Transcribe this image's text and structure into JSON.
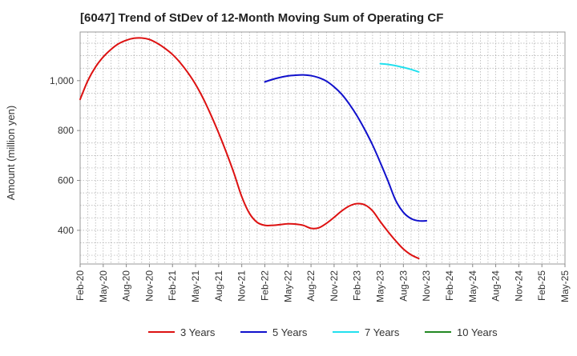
{
  "chart_data": {
    "type": "line",
    "title": "[6047]  Trend of StDev of 12-Month Moving Sum of Operating CF",
    "xlabel": "",
    "ylabel": "Amount (million yen)",
    "x_tick_labels": [
      "Feb-20",
      "May-20",
      "Aug-20",
      "Nov-20",
      "Feb-21",
      "May-21",
      "Aug-21",
      "Nov-21",
      "Feb-22",
      "May-22",
      "Aug-22",
      "Nov-22",
      "Feb-23",
      "May-23",
      "Aug-23",
      "Nov-23",
      "Feb-24",
      "May-24",
      "Aug-24",
      "Nov-24",
      "Feb-25",
      "May-25"
    ],
    "y_ticks": [
      400,
      600,
      800,
      1000
    ],
    "y_tick_labels": [
      "400",
      "600",
      "800",
      "1,000"
    ],
    "ylim": [
      265,
      1195
    ],
    "grid": true,
    "legend_position": "bottom",
    "series": [
      {
        "name": "3 Years",
        "color": "#dd1111",
        "points": [
          [
            "Feb-20",
            925
          ],
          [
            "Mar-20",
            1000
          ],
          [
            "Apr-20",
            1055
          ],
          [
            "May-20",
            1095
          ],
          [
            "Jun-20",
            1125
          ],
          [
            "Jul-20",
            1148
          ],
          [
            "Aug-20",
            1162
          ],
          [
            "Sep-20",
            1170
          ],
          [
            "Oct-20",
            1171
          ],
          [
            "Nov-20",
            1165
          ],
          [
            "Dec-20",
            1150
          ],
          [
            "Jan-21",
            1130
          ],
          [
            "Feb-21",
            1105
          ],
          [
            "Mar-21",
            1072
          ],
          [
            "Apr-21",
            1032
          ],
          [
            "May-21",
            985
          ],
          [
            "Jun-21",
            928
          ],
          [
            "Jul-21",
            862
          ],
          [
            "Aug-21",
            790
          ],
          [
            "Sep-21",
            712
          ],
          [
            "Oct-21",
            628
          ],
          [
            "Nov-21",
            535
          ],
          [
            "Dec-21",
            468
          ],
          [
            "Jan-22",
            432
          ],
          [
            "Feb-22",
            420
          ],
          [
            "Mar-22",
            420
          ],
          [
            "Apr-22",
            423
          ],
          [
            "May-22",
            426
          ],
          [
            "Jun-22",
            425
          ],
          [
            "Jul-22",
            420
          ],
          [
            "Aug-22",
            408
          ],
          [
            "Sep-22",
            410
          ],
          [
            "Oct-22",
            428
          ],
          [
            "Nov-22",
            452
          ],
          [
            "Dec-22",
            478
          ],
          [
            "Jan-23",
            498
          ],
          [
            "Feb-23",
            507
          ],
          [
            "Mar-23",
            502
          ],
          [
            "Apr-23",
            478
          ],
          [
            "May-23",
            435
          ],
          [
            "Jun-23",
            395
          ],
          [
            "Jul-23",
            358
          ],
          [
            "Aug-23",
            325
          ],
          [
            "Sep-23",
            302
          ],
          [
            "Oct-23",
            287
          ]
        ]
      },
      {
        "name": "5 Years",
        "color": "#1010cc",
        "points": [
          [
            "Feb-22",
            995
          ],
          [
            "Mar-22",
            1005
          ],
          [
            "Apr-22",
            1013
          ],
          [
            "May-22",
            1019
          ],
          [
            "Jun-22",
            1022
          ],
          [
            "Jul-22",
            1023
          ],
          [
            "Aug-22",
            1020
          ],
          [
            "Sep-22",
            1012
          ],
          [
            "Oct-22",
            998
          ],
          [
            "Nov-22",
            975
          ],
          [
            "Dec-22",
            945
          ],
          [
            "Jan-23",
            905
          ],
          [
            "Feb-23",
            858
          ],
          [
            "Mar-23",
            803
          ],
          [
            "Apr-23",
            742
          ],
          [
            "May-23",
            672
          ],
          [
            "Jun-23",
            598
          ],
          [
            "Jul-23",
            520
          ],
          [
            "Aug-23",
            472
          ],
          [
            "Sep-23",
            447
          ],
          [
            "Oct-23",
            438
          ],
          [
            "Nov-23",
            438
          ]
        ]
      },
      {
        "name": "7 Years",
        "color": "#22e0ee",
        "points": [
          [
            "May-23",
            1068
          ],
          [
            "Jun-23",
            1065
          ],
          [
            "Jul-23",
            1060
          ],
          [
            "Aug-23",
            1053
          ],
          [
            "Sep-23",
            1045
          ],
          [
            "Oct-23",
            1035
          ]
        ]
      },
      {
        "name": "10 Years",
        "color": "#228822",
        "points": []
      }
    ]
  }
}
